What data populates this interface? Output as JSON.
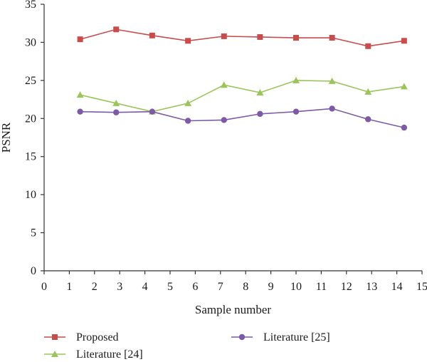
{
  "chart_data": {
    "type": "line",
    "xlabel": "Sample number",
    "ylabel": "PSNR",
    "xlim": [
      0,
      15
    ],
    "ylim": [
      0,
      35
    ],
    "xticks": [
      0,
      1,
      2,
      3,
      4,
      5,
      6,
      7,
      8,
      9,
      10,
      11,
      12,
      13,
      14,
      15
    ],
    "yticks": [
      0,
      5,
      10,
      15,
      20,
      25,
      30,
      35
    ],
    "grid": false,
    "legend_position": "bottom",
    "series": [
      {
        "name": "Proposed",
        "color": "#c94c4c",
        "marker": "square",
        "x": [
          1.43,
          2.86,
          4.29,
          5.71,
          7.14,
          8.57,
          10.0,
          11.43,
          12.86,
          14.29
        ],
        "y": [
          30.4,
          31.7,
          30.9,
          30.2,
          30.8,
          30.7,
          30.6,
          30.6,
          29.5,
          30.2
        ]
      },
      {
        "name": "Literature [24]",
        "color": "#9bc55a",
        "marker": "triangle",
        "x": [
          1.43,
          2.86,
          4.29,
          5.71,
          7.14,
          8.57,
          10.0,
          11.43,
          12.86,
          14.29
        ],
        "y": [
          23.1,
          22.0,
          20.9,
          22.0,
          24.4,
          23.4,
          25.0,
          24.9,
          23.5,
          24.2
        ]
      },
      {
        "name": "Literature [25]",
        "color": "#7d5aa6",
        "marker": "circle",
        "x": [
          1.43,
          2.86,
          4.29,
          5.71,
          7.14,
          8.57,
          10.0,
          11.43,
          12.86,
          14.29
        ],
        "y": [
          20.9,
          20.8,
          20.9,
          19.7,
          19.8,
          20.6,
          20.9,
          21.3,
          19.9,
          18.8
        ]
      }
    ]
  }
}
